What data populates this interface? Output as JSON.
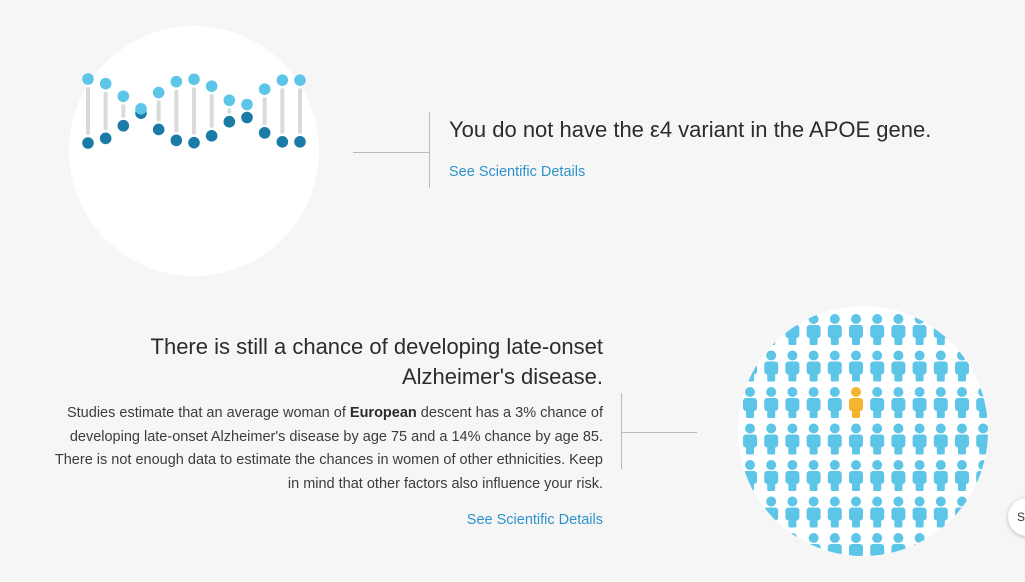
{
  "apoe": {
    "headline": "You do not have the ε4 variant in the APOE gene.",
    "details_link": "See Scientific Details",
    "icon": "dna-helix-icon"
  },
  "risk": {
    "headline_line1": "There is still a chance of developing late-onset",
    "headline_line2": "Alzheimer's disease.",
    "body_part1": "Studies estimate that an average woman of ",
    "body_bold": "European",
    "body_part2": " descent has a 3% chance of developing late-onset Alzheimer's disease by age 75 and a 14% chance by age 85. There is not enough data to estimate the chances in women of other ethnicities. Keep in mind that other factors also influence your risk.",
    "details_link": "See Scientific Details",
    "icon": "population-figures-icon"
  },
  "side_button_label": "S",
  "colors": {
    "dark_teal": "#1a7ba6",
    "light_blue": "#5dc6e8",
    "highlight": "#f5b430",
    "link": "#2f92c9"
  }
}
